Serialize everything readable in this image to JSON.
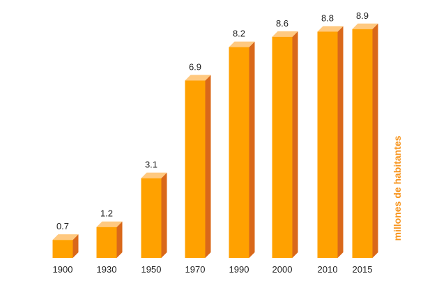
{
  "chart_data": {
    "type": "bar",
    "categories": [
      "1900",
      "1930",
      "1950",
      "1970",
      "1990",
      "2000",
      "2010",
      "2015"
    ],
    "values": [
      0.7,
      1.2,
      3.1,
      6.9,
      8.2,
      8.6,
      8.8,
      8.9
    ],
    "value_labels": [
      "0.7",
      "1.2",
      "3.1",
      "6.9",
      "8.2",
      "8.6",
      "8.8",
      "8.9"
    ],
    "title": "",
    "xlabel": "",
    "ylabel": "millones de habitantes",
    "ylim": [
      0,
      9.3
    ],
    "grid": false,
    "legend": "none",
    "style": "3d",
    "colors": {
      "front": "#FFA100",
      "side": "#D9681A",
      "top": "#FFC980",
      "axis_title": "#F7941D"
    }
  }
}
